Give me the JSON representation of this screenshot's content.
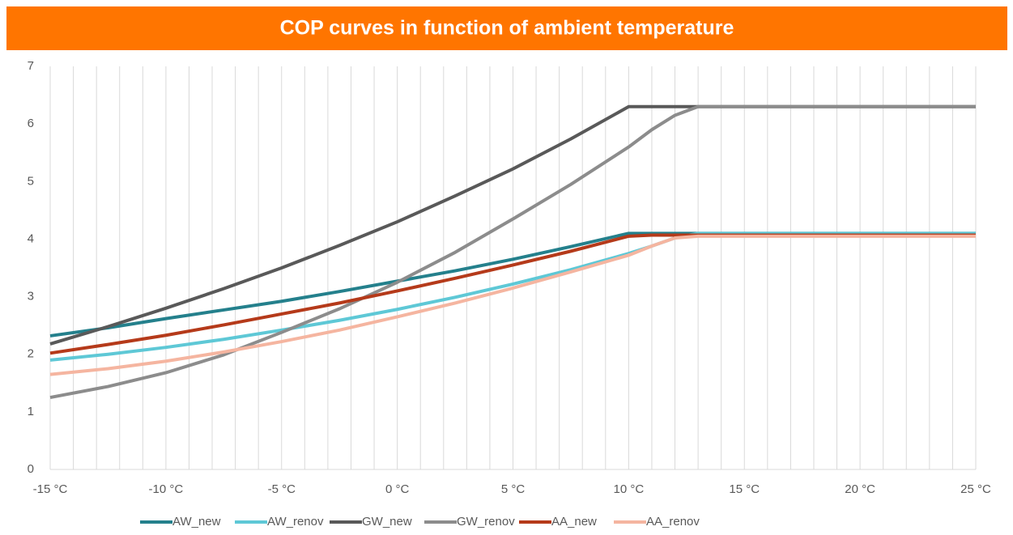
{
  "chart_data": {
    "type": "line",
    "title": "COP curves in function of ambient temperature",
    "x": [
      -15,
      -12.5,
      -10,
      -7.5,
      -5,
      -2.5,
      0,
      2.5,
      5,
      7.5,
      10,
      11,
      12,
      13,
      25
    ],
    "xlim": [
      -15,
      25
    ],
    "xticks": [
      {
        "value": -15,
        "label": "-15 °C"
      },
      {
        "value": -10,
        "label": "-10 °C"
      },
      {
        "value": -5,
        "label": "-5 °C"
      },
      {
        "value": 0,
        "label": "0 °C"
      },
      {
        "value": 5,
        "label": "5 °C"
      },
      {
        "value": 10,
        "label": "10 °C"
      },
      {
        "value": 15,
        "label": "15 °C"
      },
      {
        "value": 20,
        "label": "20 °C"
      },
      {
        "value": 25,
        "label": "25 °C"
      }
    ],
    "xminorticks": [
      -14,
      -13,
      -12,
      -11,
      -9,
      -8,
      -7,
      -6,
      -4,
      -3,
      -2,
      -1,
      1,
      2,
      3,
      4,
      6,
      7,
      8,
      9,
      11,
      12,
      13,
      14,
      16,
      17,
      18,
      19,
      21,
      22,
      23,
      24
    ],
    "ylim": [
      0,
      7
    ],
    "yticks": [
      0,
      1,
      2,
      3,
      4,
      5,
      6,
      7
    ],
    "grid": "x",
    "legend": "bottom",
    "series": [
      {
        "name": "AW_new",
        "color": "#24808c",
        "values": [
          2.32,
          2.46,
          2.62,
          2.77,
          2.92,
          3.09,
          3.27,
          3.45,
          3.65,
          3.87,
          4.1,
          4.1,
          4.1,
          4.1,
          4.1
        ]
      },
      {
        "name": "AW_renov",
        "color": "#5ec8d6",
        "values": [
          1.9,
          2.0,
          2.12,
          2.26,
          2.42,
          2.59,
          2.78,
          2.99,
          3.22,
          3.47,
          3.75,
          3.88,
          4.02,
          4.1,
          4.1
        ]
      },
      {
        "name": "GW_new",
        "color": "#595959",
        "values": [
          2.18,
          2.48,
          2.8,
          3.14,
          3.5,
          3.89,
          4.3,
          4.75,
          5.22,
          5.74,
          6.3,
          6.3,
          6.3,
          6.3,
          6.3
        ]
      },
      {
        "name": "GW_renov",
        "color": "#8c8c8c",
        "values": [
          1.25,
          1.44,
          1.68,
          1.99,
          2.38,
          2.79,
          3.25,
          3.77,
          4.35,
          4.95,
          5.6,
          5.9,
          6.15,
          6.3,
          6.3
        ]
      },
      {
        "name": "AA_new",
        "color": "#b53a1a",
        "values": [
          2.02,
          2.17,
          2.33,
          2.51,
          2.7,
          2.89,
          3.1,
          3.32,
          3.55,
          3.79,
          4.05,
          4.07,
          4.07,
          4.07,
          4.07
        ]
      },
      {
        "name": "AA_renov",
        "color": "#f5b5a0",
        "values": [
          1.65,
          1.75,
          1.88,
          2.04,
          2.22,
          2.42,
          2.65,
          2.89,
          3.15,
          3.43,
          3.72,
          3.88,
          4.02,
          4.05,
          4.05
        ]
      }
    ]
  }
}
